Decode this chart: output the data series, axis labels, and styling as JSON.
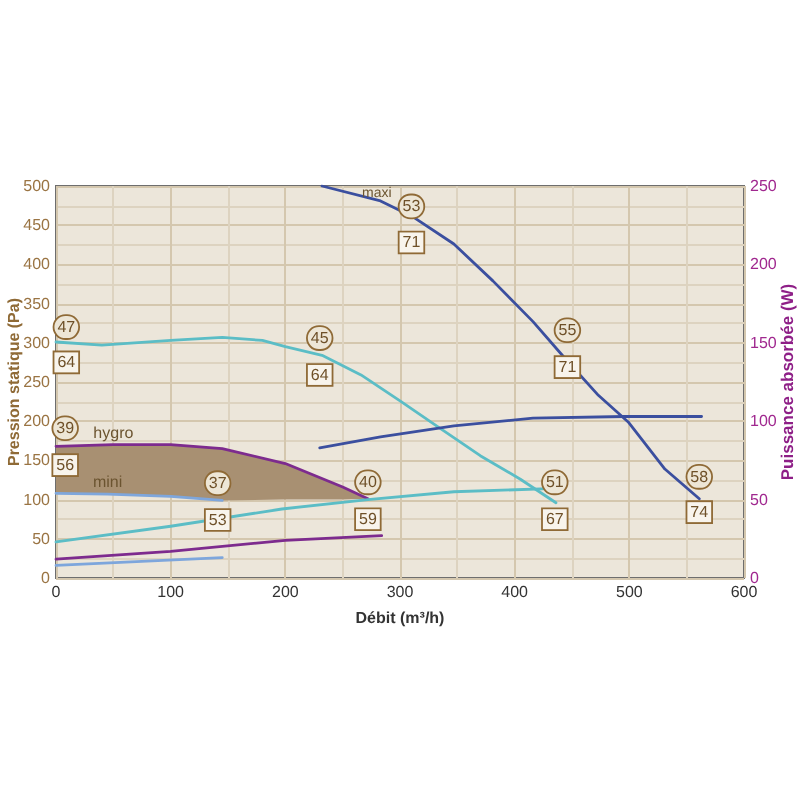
{
  "chart_data": {
    "type": "line",
    "xlabel": "Débit (m³/h)",
    "ylabel": "Pression statique (Pa)",
    "y2label": "Puissance absorbée (W)",
    "xlim": [
      0,
      600
    ],
    "xticks": [
      0,
      100,
      200,
      300,
      400,
      500,
      600
    ],
    "ylim": [
      0,
      500
    ],
    "yticks": [
      0,
      50,
      100,
      150,
      200,
      250,
      300,
      350,
      400,
      450,
      500
    ],
    "y2lim": [
      0,
      250
    ],
    "y2ticks": [
      0,
      50,
      100,
      150,
      200,
      250
    ],
    "grid": true,
    "series": [
      {
        "name": "maxi",
        "color": "#3b4f9f",
        "x": [
          232,
          283,
          312,
          347,
          381,
          416,
          444,
          473,
          499,
          531,
          561
        ],
        "values": [
          500,
          481,
          460,
          426,
          379,
          327,
          280,
          233,
          199,
          139,
          101
        ]
      },
      {
        "color": "#5bbdc6",
        "x": [
          0,
          40,
          100,
          145,
          180,
          200,
          232,
          266,
          301,
          336,
          370,
          405,
          436
        ],
        "values": [
          301,
          297,
          303,
          307,
          303,
          295,
          284,
          259,
          225,
          190,
          156,
          126,
          96
        ]
      },
      {
        "name": "hygro",
        "color": "#7d2b8e",
        "x": [
          0,
          50,
          100,
          145,
          200,
          250,
          272
        ],
        "values": [
          168,
          170,
          170,
          165,
          146,
          116,
          101
        ],
        "lower": [
          108,
          107,
          105,
          99,
          100,
          100,
          101
        ],
        "upper": [
          168,
          170,
          170,
          165,
          146,
          116,
          101
        ]
      },
      {
        "name": "mini",
        "color": "#7ea6dc",
        "x": [
          0,
          45,
          100,
          145
        ],
        "values": [
          108,
          107,
          104,
          99
        ]
      },
      {
        "axis": "y2",
        "color": "#3b4f9f",
        "x": [
          230,
          283,
          347,
          416,
          496,
          563
        ],
        "values": [
          83,
          90,
          97,
          102,
          103,
          103
        ]
      },
      {
        "axis": "y2",
        "color": "#5bbdc6",
        "x": [
          0,
          100,
          197,
          272,
          347,
          430
        ],
        "values": [
          23,
          33,
          44,
          50,
          55,
          57
        ]
      },
      {
        "axis": "y2",
        "color": "#7d2b8e",
        "x": [
          0,
          100,
          200,
          284
        ],
        "values": [
          12,
          17,
          24,
          27
        ]
      },
      {
        "axis": "y2",
        "color": "#7ea6dc",
        "x": [
          0,
          145
        ],
        "values": [
          8,
          13
        ]
      }
    ],
    "annotations": [
      {
        "text": "47",
        "x": 9,
        "y": 320
      },
      {
        "text": "64",
        "x": 9,
        "y": 275
      },
      {
        "text": "45",
        "x": 230,
        "y": 306
      },
      {
        "text": "64",
        "x": 230,
        "y": 259
      },
      {
        "text": "53",
        "x": 310,
        "y": 474
      },
      {
        "text": "71",
        "x": 310,
        "y": 428
      },
      {
        "text": "55",
        "x": 446,
        "y": 316
      },
      {
        "text": "71",
        "x": 446,
        "y": 269
      },
      {
        "text": "58",
        "x": 561,
        "y": 129
      },
      {
        "text": "74",
        "x": 561,
        "y": 84
      },
      {
        "text": "51",
        "x": 435,
        "y": 122
      },
      {
        "text": "67",
        "x": 435,
        "y": 75
      },
      {
        "text": "39",
        "x": 8,
        "y": 191
      },
      {
        "text": "56",
        "x": 8,
        "y": 144
      },
      {
        "text": "37",
        "x": 141,
        "y": 121
      },
      {
        "text": "53",
        "x": 141,
        "y": 74
      },
      {
        "text": "40",
        "x": 272,
        "y": 122
      },
      {
        "text": "59",
        "x": 272,
        "y": 75
      }
    ]
  }
}
